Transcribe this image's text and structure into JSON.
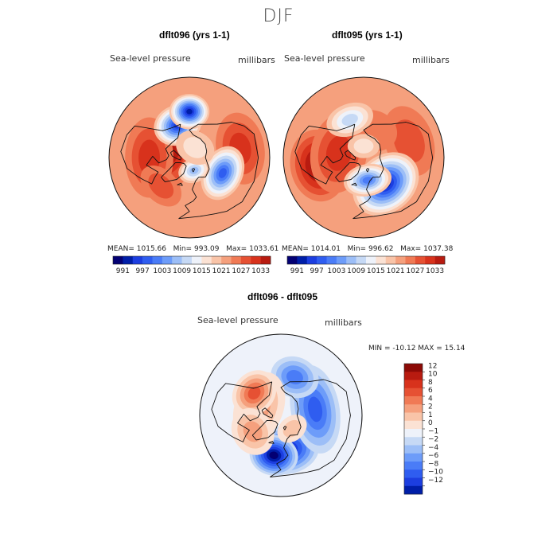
{
  "figure": {
    "title": "DJF"
  },
  "chart_data": [
    {
      "type": "heatmap",
      "panel": "top-left",
      "title": "dflt096 (yrs 1-1)",
      "variable": "Sea-level pressure",
      "units": "millibars",
      "projection": "polar stereographic, north pole",
      "stats": {
        "mean_label": "MEAN=",
        "mean": "1015.66",
        "min_label": "Min=",
        "min": "993.09",
        "max_label": "Max=",
        "max": "1033.61"
      },
      "colorbar": {
        "orientation": "horizontal",
        "tick_labels": [
          "991",
          "997",
          "1003",
          "1009",
          "1015",
          "1021",
          "1027",
          "1033"
        ],
        "levels": [
          988,
          991,
          994,
          997,
          1000,
          1003,
          1006,
          1009,
          1012,
          1015,
          1018,
          1021,
          1024,
          1027,
          1030,
          1033,
          1036
        ]
      },
      "blobs": [
        {
          "lon": 250,
          "lat": 72,
          "rx": 0.55,
          "ry": 0.35,
          "bin": 15
        },
        {
          "lon": 270,
          "lat": 55,
          "rx": 0.5,
          "ry": 0.3,
          "bin": 14
        },
        {
          "lon": 100,
          "lat": 45,
          "rx": 0.45,
          "ry": 0.3,
          "bin": 14
        },
        {
          "lon": 315,
          "lat": 55,
          "rx": 0.3,
          "ry": 0.2,
          "bin": 13
        },
        {
          "lon": 200,
          "lat": 60,
          "rx": 0.3,
          "ry": 0.25,
          "bin": 2
        },
        {
          "lon": 180,
          "lat": 50,
          "rx": 0.25,
          "ry": 0.22,
          "bin": 1
        },
        {
          "lon": 65,
          "lat": 58,
          "rx": 0.35,
          "ry": 0.25,
          "bin": 3
        },
        {
          "lon": 20,
          "lat": 78,
          "rx": 0.2,
          "ry": 0.15,
          "bin": 6
        },
        {
          "lon": 150,
          "lat": 80,
          "rx": 0.25,
          "ry": 0.2,
          "bin": 9
        }
      ],
      "default_bin": 11
    },
    {
      "type": "heatmap",
      "panel": "top-right",
      "title": "dflt095 (yrs 1-1)",
      "variable": "Sea-level pressure",
      "units": "millibars",
      "projection": "polar stereographic, north pole",
      "stats": {
        "mean_label": "MEAN=",
        "mean": "1014.01",
        "min_label": "Min=",
        "min": "996.62",
        "max_label": "Max=",
        "max": "1037.38"
      },
      "colorbar": {
        "orientation": "horizontal",
        "tick_labels": [
          "991",
          "997",
          "1003",
          "1009",
          "1015",
          "1021",
          "1027",
          "1033"
        ],
        "levels": [
          988,
          991,
          994,
          997,
          1000,
          1003,
          1006,
          1009,
          1012,
          1015,
          1018,
          1021,
          1024,
          1027,
          1030,
          1033,
          1036
        ]
      },
      "blobs": [
        {
          "lon": 280,
          "lat": 50,
          "rx": 0.45,
          "ry": 0.35,
          "bin": 16
        },
        {
          "lon": 260,
          "lat": 68,
          "rx": 0.5,
          "ry": 0.35,
          "bin": 14
        },
        {
          "lon": 110,
          "lat": 48,
          "rx": 0.45,
          "ry": 0.3,
          "bin": 13
        },
        {
          "lon": 160,
          "lat": 65,
          "rx": 0.3,
          "ry": 0.25,
          "bin": 12
        },
        {
          "lon": 40,
          "lat": 60,
          "rx": 0.45,
          "ry": 0.35,
          "bin": 1
        },
        {
          "lon": 10,
          "lat": 70,
          "rx": 0.3,
          "ry": 0.2,
          "bin": 4
        },
        {
          "lon": 200,
          "lat": 55,
          "rx": 0.3,
          "ry": 0.2,
          "bin": 7
        },
        {
          "lon": 180,
          "lat": 80,
          "rx": 0.2,
          "ry": 0.15,
          "bin": 9
        }
      ],
      "default_bin": 11
    },
    {
      "type": "heatmap",
      "panel": "bottom",
      "title": "dflt096 - dflt095",
      "variable": "Sea-level pressure",
      "units": "millibars",
      "projection": "polar stereographic, north pole",
      "stats": {
        "text": "MIN = -10.12 MAX =  15.14",
        "min": -10.12,
        "max": 15.14
      },
      "colorbar": {
        "orientation": "vertical",
        "tick_labels": [
          "12",
          "10",
          "8",
          "6",
          "4",
          "2",
          "1",
          "0",
          "−1",
          "−2",
          "−4",
          "−6",
          "−8",
          "−10",
          "−12"
        ],
        "levels": [
          15,
          12,
          10,
          8,
          6,
          4,
          2,
          1,
          0,
          -1,
          -2,
          -4,
          -6,
          -8,
          -10,
          -12,
          -15
        ]
      },
      "blobs": [
        {
          "lon": 10,
          "lat": 60,
          "rx": 0.4,
          "ry": 0.3,
          "bin": 1
        },
        {
          "lon": 350,
          "lat": 55,
          "rx": 0.3,
          "ry": 0.25,
          "bin": 0
        },
        {
          "lon": 100,
          "lat": 60,
          "rx": 0.55,
          "ry": 0.3,
          "bin": 3
        },
        {
          "lon": 160,
          "lat": 55,
          "rx": 0.3,
          "ry": 0.25,
          "bin": 4
        },
        {
          "lon": 250,
          "lat": 70,
          "rx": 0.45,
          "ry": 0.3,
          "bin": 11
        },
        {
          "lon": 230,
          "lat": 60,
          "rx": 0.3,
          "ry": 0.25,
          "bin": 13
        },
        {
          "lon": 300,
          "lat": 62,
          "rx": 0.3,
          "ry": 0.25,
          "bin": 11
        },
        {
          "lon": 40,
          "lat": 75,
          "rx": 0.2,
          "ry": 0.15,
          "bin": 10
        }
      ],
      "default_bin": 8
    }
  ],
  "palette": [
    "#030073",
    "#001ea8",
    "#1c3ee0",
    "#2f5df0",
    "#4a7cf7",
    "#6d9cf9",
    "#9cbef7",
    "#c6d9f5",
    "#eef2fa",
    "#fbe2d4",
    "#f9c4a8",
    "#f5a07d",
    "#f07a55",
    "#e65133",
    "#d8321c",
    "#b81b10",
    "#8c0a06"
  ]
}
